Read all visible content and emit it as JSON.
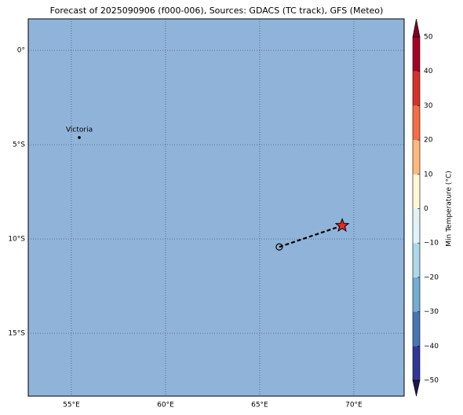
{
  "chart_data": {
    "type": "map",
    "title": "Forecast of 2025090906 (f000-006), Sources: GDACS (TC track), GFS (Meteo)",
    "ocean_color": "#90b4d9",
    "xlim": [
      52.71,
      72.67
    ],
    "ylim": [
      -18.33,
      1.67
    ],
    "xticks": [
      {
        "value": 55,
        "label": "55°E"
      },
      {
        "value": 60,
        "label": "60°E"
      },
      {
        "value": 65,
        "label": "65°E"
      },
      {
        "value": 70,
        "label": "70°E"
      }
    ],
    "yticks": [
      {
        "value": 0,
        "label": "0°"
      },
      {
        "value": -5,
        "label": "5°S"
      },
      {
        "value": -10,
        "label": "10°S"
      },
      {
        "value": -15,
        "label": "15°S"
      }
    ],
    "grid": true,
    "places": [
      {
        "name": "Victoria",
        "lon": 55.42,
        "lat": -4.62
      }
    ],
    "track": {
      "lon": [
        66.04,
        69.38
      ],
      "lat": [
        -10.42,
        -9.29
      ],
      "color": "#000000",
      "marker_color": "#e8281e"
    },
    "colorbar": {
      "label": "Min Temperature (°C)",
      "levels": [
        -50,
        -40,
        -30,
        -20,
        -10,
        0,
        10,
        20,
        30,
        40,
        50
      ],
      "colors": [
        "#313695",
        "#4575b4",
        "#74add1",
        "#abd9e9",
        "#e0f3f8",
        "#fef6d8",
        "#fdb97d",
        "#f46d43",
        "#d73027",
        "#a50026"
      ],
      "under_color": "#1a1a4a",
      "over_color": "#800020",
      "ticks": [
        {
          "value": -50,
          "label": "−50"
        },
        {
          "value": -40,
          "label": "−40"
        },
        {
          "value": -30,
          "label": "−30"
        },
        {
          "value": -20,
          "label": "−20"
        },
        {
          "value": -10,
          "label": "−10"
        },
        0,
        10,
        20,
        30,
        40,
        50
      ]
    }
  }
}
